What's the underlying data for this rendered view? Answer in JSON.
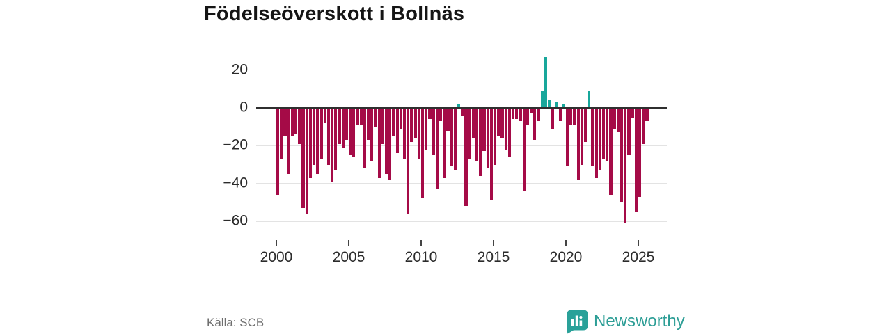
{
  "title": "Födelseöverskott i Bollnäs",
  "source": "Källa: SCB",
  "brand": {
    "name": "Newsworthy"
  },
  "colors": {
    "positive": "#18a79b",
    "negative": "#a50b47",
    "zero_axis": "#2f2f2f",
    "grid": "#e3e3e3",
    "tick_label": "#2b2b2b",
    "muted_text": "#6e6e6e",
    "brand_teal": "#2d9e96",
    "background": "#ffffff"
  },
  "y_axis": {
    "labels": [
      "20",
      "0",
      "−20",
      "−40",
      "−60"
    ]
  },
  "x_axis": {
    "labels": [
      "2000",
      "2005",
      "2010",
      "2015",
      "2020",
      "2025"
    ]
  },
  "chart_data": {
    "type": "bar",
    "title": "Födelseöverskott i Bollnäs",
    "xlabel": "",
    "ylabel": "",
    "frequency": "quarterly",
    "x_start": "2000-Q1",
    "x_end": "2025-Q3",
    "ylim": [
      -66,
      30
    ],
    "y_ticks": [
      20,
      0,
      -20,
      -40,
      -60
    ],
    "x_ticks": [
      2000,
      2005,
      2010,
      2015,
      2020,
      2025
    ],
    "grid": "horizontal-only",
    "legend": "none",
    "positive_color": "#18a79b",
    "negative_color": "#a50b47",
    "categories": [
      "2000Q1",
      "2000Q2",
      "2000Q3",
      "2000Q4",
      "2001Q1",
      "2001Q2",
      "2001Q3",
      "2001Q4",
      "2002Q1",
      "2002Q2",
      "2002Q3",
      "2002Q4",
      "2003Q1",
      "2003Q2",
      "2003Q3",
      "2003Q4",
      "2004Q1",
      "2004Q2",
      "2004Q3",
      "2004Q4",
      "2005Q1",
      "2005Q2",
      "2005Q3",
      "2005Q4",
      "2006Q1",
      "2006Q2",
      "2006Q3",
      "2006Q4",
      "2007Q1",
      "2007Q2",
      "2007Q3",
      "2007Q4",
      "2008Q1",
      "2008Q2",
      "2008Q3",
      "2008Q4",
      "2009Q1",
      "2009Q2",
      "2009Q3",
      "2009Q4",
      "2010Q1",
      "2010Q2",
      "2010Q3",
      "2010Q4",
      "2011Q1",
      "2011Q2",
      "2011Q3",
      "2011Q4",
      "2012Q1",
      "2012Q2",
      "2012Q3",
      "2012Q4",
      "2013Q1",
      "2013Q2",
      "2013Q3",
      "2013Q4",
      "2014Q1",
      "2014Q2",
      "2014Q3",
      "2014Q4",
      "2015Q1",
      "2015Q2",
      "2015Q3",
      "2015Q4",
      "2016Q1",
      "2016Q2",
      "2016Q3",
      "2016Q4",
      "2017Q1",
      "2017Q2",
      "2017Q3",
      "2017Q4",
      "2018Q1",
      "2018Q2",
      "2018Q3",
      "2018Q4",
      "2019Q1",
      "2019Q2",
      "2019Q3",
      "2019Q4",
      "2020Q1",
      "2020Q2",
      "2020Q3",
      "2020Q4",
      "2021Q1",
      "2021Q2",
      "2021Q3",
      "2021Q4",
      "2022Q1",
      "2022Q2",
      "2022Q3",
      "2022Q4",
      "2023Q1",
      "2023Q2",
      "2023Q3",
      "2023Q4",
      "2024Q1",
      "2024Q2",
      "2024Q3",
      "2024Q4",
      "2025Q1",
      "2025Q2",
      "2025Q3"
    ],
    "values": [
      -46,
      -27,
      -15,
      -35,
      -15,
      -14,
      -19,
      -53,
      -56,
      -37,
      -30,
      -35,
      -27,
      -8,
      -30,
      -39,
      -33,
      -19,
      -21,
      -17,
      -25,
      -26,
      -9,
      -9,
      -32,
      -17,
      -28,
      -10,
      -37,
      -19,
      -35,
      -38,
      -15,
      -24,
      -11,
      -27,
      -56,
      -18,
      -16,
      -27,
      -48,
      -22,
      -6,
      -25,
      -43,
      -7,
      -37,
      -12,
      -31,
      -33,
      2,
      -4,
      -52,
      -27,
      -16,
      -28,
      -36,
      -23,
      -32,
      -49,
      -30,
      -15,
      -16,
      -22,
      -26,
      -6,
      -6,
      -7,
      -44,
      -9,
      -3,
      -17,
      -7,
      9,
      27,
      4,
      -11,
      3,
      -7,
      2,
      -31,
      -9,
      -9,
      -38,
      -30,
      -18,
      9,
      -31,
      -37,
      -33,
      -27,
      -28,
      -46,
      -11,
      -13,
      -50,
      -61,
      -25,
      -5,
      -55,
      -47,
      -19,
      -7
    ]
  }
}
